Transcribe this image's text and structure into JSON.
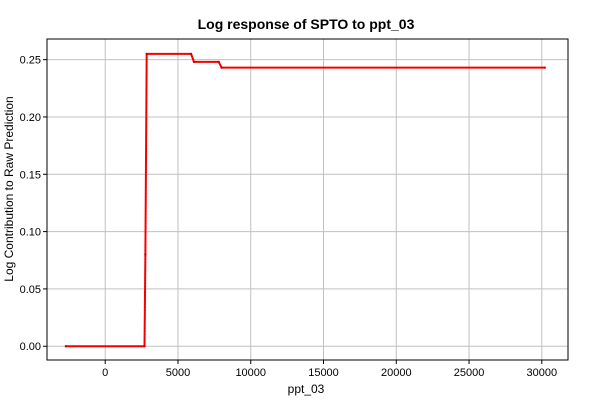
{
  "chart_data": {
    "type": "line",
    "title": "Log response of SPTO to ppt_03",
    "xlabel": "ppt_03",
    "ylabel": "Log Contribution to Raw Prediction",
    "xlim": [
      -4000,
      31800
    ],
    "ylim": [
      -0.012,
      0.268
    ],
    "x_ticks": [
      0,
      5000,
      10000,
      15000,
      20000,
      25000,
      30000
    ],
    "x_tick_labels": [
      "0",
      "5000",
      "10000",
      "15000",
      "20000",
      "25000",
      "30000"
    ],
    "y_ticks": [
      0.0,
      0.05,
      0.1,
      0.15,
      0.2,
      0.25
    ],
    "y_tick_labels": [
      "0.00",
      "0.05",
      "0.10",
      "0.15",
      "0.20",
      "0.25"
    ],
    "grid": true,
    "legend": "none",
    "colors": {
      "line": "#ff0000",
      "marker": "#cc0000",
      "grid": "#c0c0c0",
      "axes": "#000000"
    },
    "series": [
      {
        "x": [
          -2700,
          2700,
          2760,
          2850,
          5900,
          6100,
          7800,
          8000,
          30200
        ],
        "values": [
          0.0,
          0.0,
          0.08,
          0.255,
          0.255,
          0.248,
          0.248,
          0.243,
          0.243
        ]
      }
    ]
  }
}
